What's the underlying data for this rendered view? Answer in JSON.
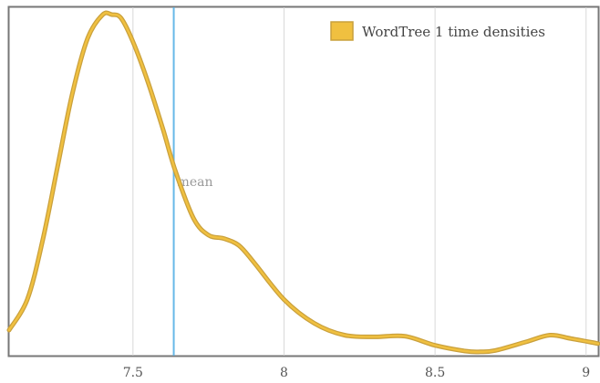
{
  "chart_data": {
    "type": "line",
    "xlim": [
      7.09,
      9.04
    ],
    "ylim": [
      0,
      1
    ],
    "x_ticks": [
      {
        "value": 7.5,
        "label": "7.5"
      },
      {
        "value": 8,
        "label": "8"
      },
      {
        "value": 8.5,
        "label": "8.5"
      },
      {
        "value": 9,
        "label": "9"
      }
    ],
    "grid": "vertical",
    "legend_position": "top-right",
    "series": [
      {
        "name": "WordTree 1 time densities",
        "color": "#f0c040",
        "stroke_color": "#c9a03c",
        "x": [
          7.09,
          7.15,
          7.2,
          7.25,
          7.3,
          7.35,
          7.4,
          7.43,
          7.46,
          7.5,
          7.55,
          7.6,
          7.64,
          7.7,
          7.75,
          7.8,
          7.85,
          7.9,
          8.0,
          8.1,
          8.2,
          8.3,
          8.4,
          8.5,
          8.6,
          8.65,
          8.7,
          8.8,
          8.88,
          8.95,
          9.04
        ],
        "values": [
          0.07,
          0.16,
          0.33,
          0.55,
          0.77,
          0.93,
          1.0,
          1.0,
          0.99,
          0.92,
          0.8,
          0.66,
          0.54,
          0.4,
          0.35,
          0.34,
          0.32,
          0.27,
          0.16,
          0.09,
          0.055,
          0.05,
          0.052,
          0.025,
          0.008,
          0.006,
          0.01,
          0.035,
          0.055,
          0.045,
          0.03
        ]
      }
    ],
    "annotations": [
      {
        "type": "vline",
        "x": 7.635,
        "label": "mean",
        "color": "#66b8e8"
      }
    ]
  }
}
